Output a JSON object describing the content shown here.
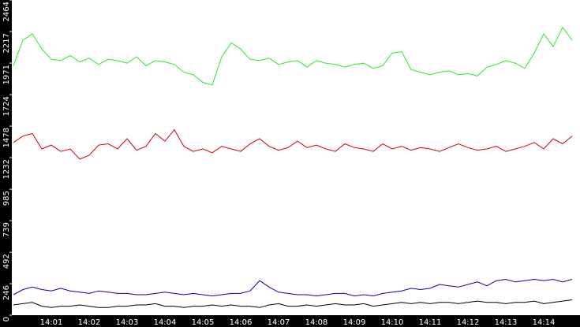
{
  "chart_data": {
    "type": "line",
    "categories": [
      null,
      null,
      null,
      null,
      "14:01",
      null,
      null,
      null,
      "14:02",
      null,
      null,
      null,
      "14:03",
      null,
      null,
      null,
      "14:04",
      null,
      null,
      null,
      "14:05",
      null,
      null,
      null,
      "14:06",
      null,
      null,
      null,
      "14:07",
      null,
      null,
      null,
      "14:08",
      null,
      null,
      null,
      "14:09",
      null,
      null,
      null,
      "14:10",
      null,
      null,
      null,
      "14:11",
      null,
      null,
      null,
      "14:12",
      null,
      null,
      null,
      "14:13",
      null,
      null,
      null,
      "14:14",
      null,
      null,
      null
    ],
    "ylim": [
      0,
      2464
    ],
    "yticks": [
      0,
      246,
      492,
      739,
      985,
      1232,
      1478,
      1724,
      1971,
      2217,
      2464
    ],
    "series": [
      {
        "color": "#22ee22",
        "values": [
          1950,
          2150,
          2200,
          2080,
          2000,
          1990,
          2030,
          1980,
          2010,
          1960,
          2000,
          1990,
          1970,
          2020,
          1950,
          1990,
          1980,
          1960,
          1900,
          1880,
          1820,
          1800,
          2020,
          2130,
          2080,
          2000,
          1990,
          2010,
          1960,
          1980,
          1990,
          1940,
          1990,
          1970,
          1960,
          1940,
          1960,
          1970,
          1930,
          1950,
          2050,
          2060,
          1920,
          1900,
          1880,
          1900,
          1910,
          1880,
          1890,
          1870,
          1940,
          1960,
          1990,
          1970,
          1930,
          2050,
          2200,
          2100,
          2250,
          2150
        ]
      },
      {
        "color": "#dd0000",
        "values": [
          1350,
          1400,
          1420,
          1300,
          1330,
          1280,
          1300,
          1220,
          1250,
          1330,
          1340,
          1300,
          1380,
          1290,
          1320,
          1420,
          1360,
          1450,
          1320,
          1280,
          1300,
          1270,
          1320,
          1300,
          1280,
          1340,
          1380,
          1320,
          1290,
          1310,
          1360,
          1310,
          1330,
          1300,
          1280,
          1340,
          1310,
          1300,
          1280,
          1340,
          1300,
          1320,
          1290,
          1310,
          1300,
          1280,
          1310,
          1340,
          1310,
          1290,
          1300,
          1320,
          1280,
          1300,
          1320,
          1350,
          1300,
          1380,
          1340,
          1400
        ]
      },
      {
        "color": "#0000cc",
        "values": [
          160,
          200,
          220,
          200,
          190,
          210,
          190,
          180,
          170,
          190,
          180,
          170,
          170,
          160,
          160,
          170,
          180,
          170,
          160,
          170,
          160,
          150,
          160,
          170,
          170,
          190,
          270,
          220,
          180,
          170,
          160,
          160,
          150,
          160,
          170,
          170,
          150,
          160,
          150,
          170,
          180,
          190,
          210,
          200,
          210,
          240,
          230,
          220,
          240,
          260,
          230,
          270,
          280,
          260,
          270,
          280,
          270,
          280,
          260,
          280
        ]
      },
      {
        "color": "#000000",
        "values": [
          80,
          90,
          100,
          70,
          60,
          70,
          70,
          80,
          70,
          60,
          60,
          70,
          70,
          80,
          80,
          90,
          70,
          70,
          60,
          70,
          70,
          80,
          70,
          80,
          70,
          70,
          60,
          80,
          90,
          70,
          70,
          80,
          70,
          80,
          90,
          80,
          80,
          90,
          70,
          80,
          90,
          100,
          90,
          100,
          90,
          100,
          100,
          90,
          100,
          110,
          100,
          100,
          90,
          100,
          100,
          110,
          90,
          100,
          110,
          120
        ]
      }
    ]
  }
}
